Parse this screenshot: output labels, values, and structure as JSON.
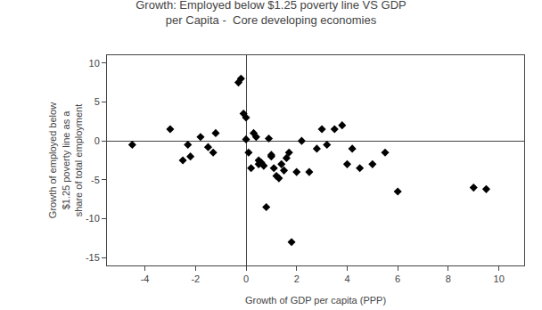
{
  "chart_data": {
    "type": "scatter",
    "title": "Growth: Employed below $1.25 poverty line VS GDP\nper Capita -  Core developing economies",
    "xlabel": "Growth of GDP per capita (PPP)",
    "ylabel": "Growth of employed below\n$1.25 poverty line as a\nshare of total employment",
    "x": [
      -4.5,
      -3.0,
      -2.5,
      -2.3,
      -2.2,
      -1.8,
      -1.5,
      -1.3,
      -1.2,
      -0.3,
      -0.2,
      -0.1,
      0.0,
      0.0,
      0.1,
      0.2,
      0.3,
      0.4,
      0.5,
      0.5,
      0.6,
      0.7,
      0.8,
      0.9,
      1.0,
      1.0,
      1.1,
      1.2,
      1.3,
      1.4,
      1.5,
      1.6,
      1.7,
      1.8,
      2.0,
      2.2,
      2.5,
      2.8,
      3.0,
      3.2,
      3.5,
      3.8,
      4.0,
      4.2,
      4.5,
      5.0,
      5.5,
      6.0,
      9.0,
      9.5
    ],
    "values": [
      -0.5,
      1.5,
      -2.5,
      -0.5,
      -2.0,
      0.5,
      -0.8,
      -1.5,
      1.0,
      7.5,
      8.0,
      3.5,
      3.0,
      0.2,
      -1.5,
      -3.5,
      1.0,
      0.5,
      -3.0,
      -2.5,
      -2.8,
      -3.2,
      -8.5,
      0.3,
      -1.8,
      -2.0,
      -3.5,
      -4.5,
      -4.8,
      -3.0,
      -3.8,
      -2.2,
      -1.5,
      -13.0,
      -4.0,
      0.0,
      -4.0,
      -1.0,
      1.5,
      -0.5,
      1.5,
      2.0,
      -3.0,
      -1.0,
      -3.5,
      -3.0,
      -1.5,
      -6.5,
      -6.0,
      -6.2
    ],
    "xlim": [
      -5.5,
      11
    ],
    "ylim": [
      -16,
      11
    ],
    "xticks": [
      -4,
      -2,
      0,
      2,
      4,
      6,
      8,
      10
    ],
    "yticks": [
      -15,
      -10,
      -5,
      0,
      5,
      10
    ],
    "color": "black",
    "marker": "diamond",
    "grid": false
  }
}
